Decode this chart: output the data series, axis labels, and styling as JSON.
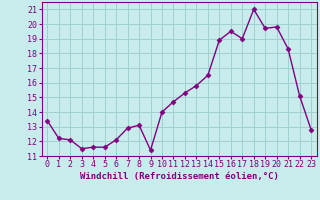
{
  "x": [
    0,
    1,
    2,
    3,
    4,
    5,
    6,
    7,
    8,
    9,
    10,
    11,
    12,
    13,
    14,
    15,
    16,
    17,
    18,
    19,
    20,
    21,
    22,
    23
  ],
  "y": [
    13.4,
    12.2,
    12.1,
    11.5,
    11.6,
    11.6,
    12.1,
    12.9,
    13.1,
    11.4,
    14.0,
    14.7,
    15.3,
    15.8,
    16.5,
    18.9,
    19.5,
    19.0,
    21.0,
    19.7,
    19.8,
    18.3,
    15.1,
    12.8
  ],
  "line_color": "#800080",
  "marker": "D",
  "markersize": 2.5,
  "linewidth": 1.0,
  "bg_color": "#c8ecec",
  "grid_color": "#a0d0d0",
  "xlabel": "Windchill (Refroidissement éolien,°C)",
  "xlabel_fontsize": 6.5,
  "tick_fontsize": 6.0,
  "ylim": [
    11,
    21.5
  ],
  "yticks": [
    11,
    12,
    13,
    14,
    15,
    16,
    17,
    18,
    19,
    20,
    21
  ],
  "xticks": [
    0,
    1,
    2,
    3,
    4,
    5,
    6,
    7,
    8,
    9,
    10,
    11,
    12,
    13,
    14,
    15,
    16,
    17,
    18,
    19,
    20,
    21,
    22,
    23
  ],
  "xlim": [
    -0.5,
    23.5
  ]
}
